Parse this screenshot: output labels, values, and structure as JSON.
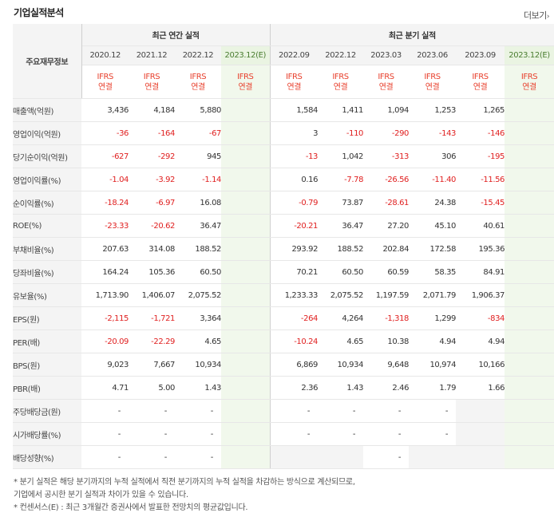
{
  "title": "기업실적분석",
  "more": {
    "label": "더보기",
    "arrow": "›"
  },
  "corner_label": "주요재무정보",
  "groups": {
    "annual": "최근 연간 실적",
    "quarter": "최근 분기 실적"
  },
  "periods": {
    "annual": [
      "2020.12",
      "2021.12",
      "2022.12",
      "2023.12(E)"
    ],
    "quarter": [
      "2022.09",
      "2022.12",
      "2023.03",
      "2023.06",
      "2023.09",
      "2023.12(E)"
    ]
  },
  "basis": {
    "line1": "IFRS",
    "line2": "연결"
  },
  "rows": [
    {
      "label": "매출액(억원)",
      "annual": [
        "3,436",
        "4,184",
        "5,880",
        ""
      ],
      "quarter": [
        "1,584",
        "1,411",
        "1,094",
        "1,253",
        "1,265",
        ""
      ]
    },
    {
      "label": "영업이익(억원)",
      "annual": [
        "-36",
        "-164",
        "-67",
        ""
      ],
      "quarter": [
        "3",
        "-110",
        "-290",
        "-143",
        "-146",
        ""
      ]
    },
    {
      "label": "당기순이익(억원)",
      "annual": [
        "-627",
        "-292",
        "945",
        ""
      ],
      "quarter": [
        "-13",
        "1,042",
        "-313",
        "306",
        "-195",
        ""
      ]
    },
    {
      "label": "영업이익률(%)",
      "annual": [
        "-1.04",
        "-3.92",
        "-1.14",
        ""
      ],
      "quarter": [
        "0.16",
        "-7.78",
        "-26.56",
        "-11.40",
        "-11.56",
        ""
      ]
    },
    {
      "label": "순이익률(%)",
      "annual": [
        "-18.24",
        "-6.97",
        "16.08",
        ""
      ],
      "quarter": [
        "-0.79",
        "73.87",
        "-28.61",
        "24.38",
        "-15.45",
        ""
      ]
    },
    {
      "label": "ROE(%)",
      "annual": [
        "-23.33",
        "-20.62",
        "36.47",
        ""
      ],
      "quarter": [
        "-20.21",
        "36.47",
        "27.20",
        "45.10",
        "40.61",
        ""
      ]
    },
    {
      "label": "부채비율(%)",
      "annual": [
        "207.63",
        "314.08",
        "188.52",
        ""
      ],
      "quarter": [
        "293.92",
        "188.52",
        "202.84",
        "172.58",
        "195.36",
        ""
      ]
    },
    {
      "label": "당좌비율(%)",
      "annual": [
        "164.24",
        "105.36",
        "60.50",
        ""
      ],
      "quarter": [
        "70.21",
        "60.50",
        "60.59",
        "58.35",
        "84.91",
        ""
      ]
    },
    {
      "label": "유보율(%)",
      "annual": [
        "1,713.90",
        "1,406.07",
        "2,075.52",
        ""
      ],
      "quarter": [
        "1,233.33",
        "2,075.52",
        "1,197.59",
        "2,071.79",
        "1,906.37",
        ""
      ]
    },
    {
      "label": "EPS(원)",
      "annual": [
        "-2,115",
        "-1,721",
        "3,364",
        ""
      ],
      "quarter": [
        "-264",
        "4,264",
        "-1,318",
        "1,299",
        "-834",
        ""
      ]
    },
    {
      "label": "PER(배)",
      "annual": [
        "-20.09",
        "-22.29",
        "4.65",
        ""
      ],
      "quarter": [
        "-10.24",
        "4.65",
        "10.38",
        "4.94",
        "4.94",
        ""
      ]
    },
    {
      "label": "BPS(원)",
      "annual": [
        "9,023",
        "7,667",
        "10,934",
        ""
      ],
      "quarter": [
        "6,869",
        "10,934",
        "9,648",
        "10,974",
        "10,166",
        ""
      ]
    },
    {
      "label": "PBR(배)",
      "annual": [
        "4.71",
        "5.00",
        "1.43",
        ""
      ],
      "quarter": [
        "2.36",
        "1.43",
        "2.46",
        "1.79",
        "1.66",
        ""
      ]
    },
    {
      "label": "주당배당금(원)",
      "annual": [
        "-",
        "-",
        "-",
        ""
      ],
      "quarter": [
        "-",
        "-",
        "-",
        "-",
        "",
        ""
      ]
    },
    {
      "label": "시가배당률(%)",
      "annual": [
        "-",
        "-",
        "-",
        ""
      ],
      "quarter": [
        "-",
        "-",
        "-",
        "-",
        "",
        ""
      ]
    },
    {
      "label": "배당성향(%)",
      "annual": [
        "-",
        "-",
        "-",
        ""
      ],
      "quarter": [
        "",
        "",
        "-",
        "",
        "",
        ""
      ]
    }
  ],
  "notes": [
    "* 분기 실적은 해당 분기까지의 누적 실적에서 직전 분기까지의 누적 실적을 차감하는 방식으로 계산되므로,",
    "  기업에서 공시한 분기 실적과 차이가 있을 수 있습니다.",
    "* 컨센서스(E) : 최근 3개월간 증권사에서 발표한 전망치의 평균값입니다."
  ],
  "colors": {
    "negative": "#e02020",
    "ifrs": "#e8412e",
    "estimate_bg": "#f1f8ec"
  }
}
